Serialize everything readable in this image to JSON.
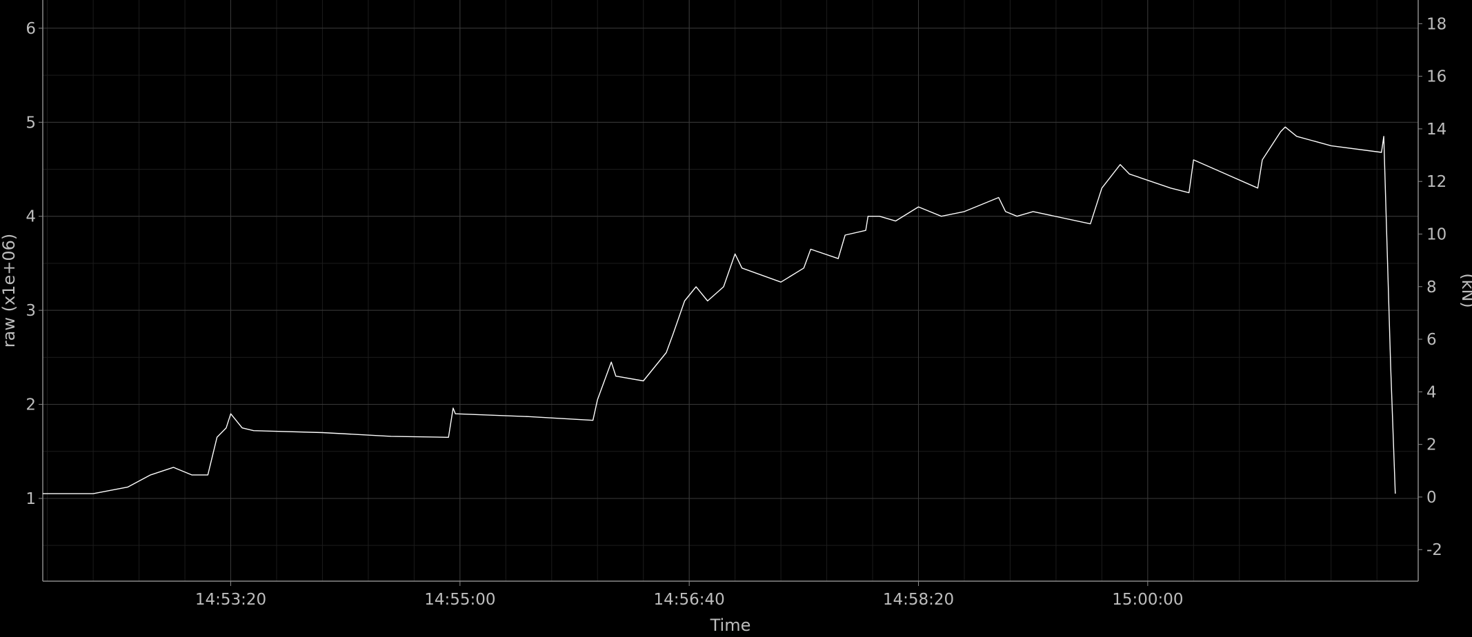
{
  "chart_data": {
    "type": "line",
    "xlabel": "Time",
    "ylabel_left": "raw (x1e+06)",
    "ylabel_right": "(kN)",
    "x_range": [
      "14:51:58",
      "15:01:58"
    ],
    "x_ticks": [
      "14:53:20",
      "14:55:00",
      "14:56:40",
      "14:58:20",
      "15:00:00"
    ],
    "y_left_range": [
      0.12,
      6.3
    ],
    "y_left_ticks": [
      1,
      2,
      3,
      4,
      5,
      6
    ],
    "y_right_range": [
      -3.2,
      18.9
    ],
    "y_right_ticks": [
      -2,
      0,
      2,
      4,
      6,
      8,
      10,
      12,
      14,
      16,
      18
    ],
    "grid": true,
    "colors": {
      "background": "#000000",
      "grid_minor": "#1c1c1c",
      "grid_major": "#3a3a3a",
      "axis": "#8a8a8a",
      "text": "#bdbdbd",
      "line": "#ffffff"
    },
    "series": [
      {
        "x": [
          "14:51:58",
          "14:52:20",
          "14:52:35",
          "14:52:45",
          "14:52:55",
          "14:53:03",
          "14:53:05",
          "14:53:10",
          "14:53:14",
          "14:53:18",
          "14:53:20",
          "14:53:25",
          "14:53:30",
          "14:54:00",
          "14:54:30",
          "14:54:54",
          "14:54:55",
          "14:54:57",
          "14:54:58",
          "14:55:30",
          "14:55:58",
          "14:56:00",
          "14:56:06",
          "14:56:08",
          "14:56:20",
          "14:56:30",
          "14:56:33",
          "14:56:38",
          "14:56:43",
          "14:56:48",
          "14:56:55",
          "14:57:00",
          "14:57:03",
          "14:57:20",
          "14:57:30",
          "14:57:33",
          "14:57:45",
          "14:57:48",
          "14:57:57",
          "14:57:58",
          "14:58:03",
          "14:58:10",
          "14:58:20",
          "14:58:30",
          "14:58:40",
          "14:58:55",
          "14:58:58",
          "14:59:03",
          "14:59:10",
          "14:59:35",
          "14:59:40",
          "14:59:48",
          "14:59:52",
          "15:00:10",
          "15:00:18",
          "15:00:20",
          "15:00:48",
          "15:00:50",
          "15:00:58",
          "15:01:00",
          "15:01:05",
          "15:01:20",
          "15:01:42",
          "15:01:43",
          "15:01:46",
          "15:01:48"
        ],
        "y": [
          1.05,
          1.05,
          1.12,
          1.25,
          1.33,
          1.25,
          1.25,
          1.25,
          1.65,
          1.75,
          1.9,
          1.75,
          1.72,
          1.7,
          1.66,
          1.65,
          1.65,
          1.96,
          1.9,
          1.87,
          1.83,
          2.05,
          2.45,
          2.3,
          2.25,
          2.55,
          2.75,
          3.1,
          3.25,
          3.1,
          3.25,
          3.6,
          3.45,
          3.3,
          3.45,
          3.65,
          3.55,
          3.8,
          3.85,
          4.0,
          4.0,
          3.95,
          4.1,
          4.0,
          4.05,
          4.2,
          4.05,
          4.0,
          4.05,
          3.92,
          4.3,
          4.55,
          4.45,
          4.3,
          4.25,
          4.6,
          4.3,
          4.6,
          4.9,
          4.95,
          4.85,
          4.75,
          4.68,
          4.85,
          2.4,
          1.05
        ]
      }
    ]
  }
}
